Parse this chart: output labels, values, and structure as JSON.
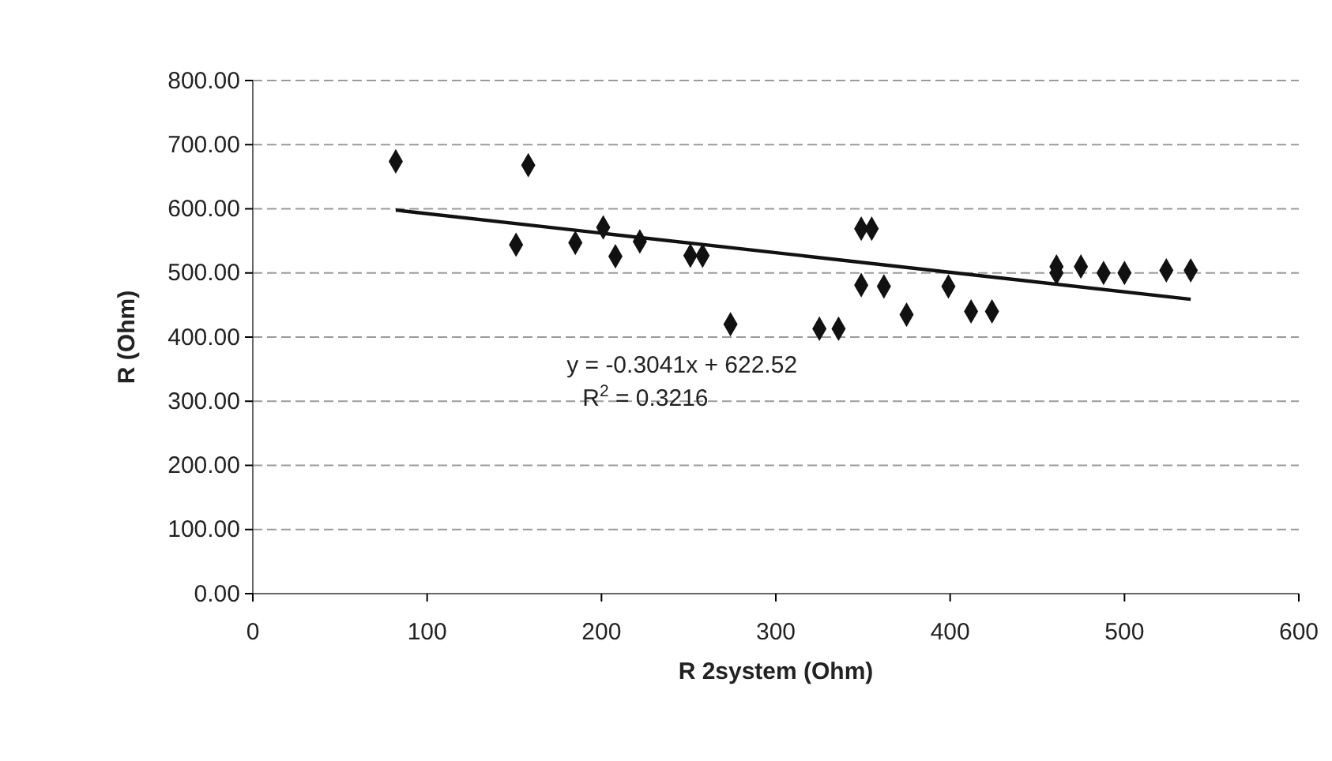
{
  "chart_data": {
    "type": "scatter",
    "xlabel": "R 2system (Ohm)",
    "ylabel": "R (Ohm)",
    "xlim": [
      0,
      600
    ],
    "xticks": [
      0,
      100,
      200,
      300,
      400,
      500,
      600
    ],
    "ylim": [
      0,
      800
    ],
    "yticks": [
      {
        "value": 0,
        "label": "0.00"
      },
      {
        "value": 100,
        "label": "100.00"
      },
      {
        "value": 200,
        "label": "200.00"
      },
      {
        "value": 300,
        "label": "300.00"
      },
      {
        "value": 400,
        "label": "400.00"
      },
      {
        "value": 500,
        "label": "500.00"
      },
      {
        "value": 600,
        "label": "600.00"
      },
      {
        "value": 700,
        "label": "700.00"
      },
      {
        "value": 800,
        "label": "800.00"
      }
    ],
    "grid": "y",
    "marker": "diamond",
    "annotations": [
      "y = -0.3041x + 622.52",
      "R$^{2}$ = 0.3216"
    ],
    "series": [
      {
        "type": "scatter",
        "color": "#111111",
        "x": [
          82,
          158,
          151,
          185,
          201,
          208,
          222,
          251,
          258,
          274,
          325,
          336,
          349,
          355,
          349,
          362,
          375,
          399,
          412,
          424,
          461,
          461,
          475,
          488,
          500,
          524,
          538
        ],
        "values": [
          674,
          668,
          544,
          547,
          571,
          526,
          549,
          527,
          527,
          420,
          413,
          413,
          569,
          569,
          481,
          479,
          435,
          479,
          440,
          440,
          510,
          500,
          510,
          500,
          500,
          504,
          504
        ]
      },
      {
        "type": "line",
        "color": "#111111",
        "line_style": "solid",
        "marker": "none",
        "x": [
          82,
          538
        ],
        "values": [
          598,
          459
        ]
      }
    ]
  }
}
